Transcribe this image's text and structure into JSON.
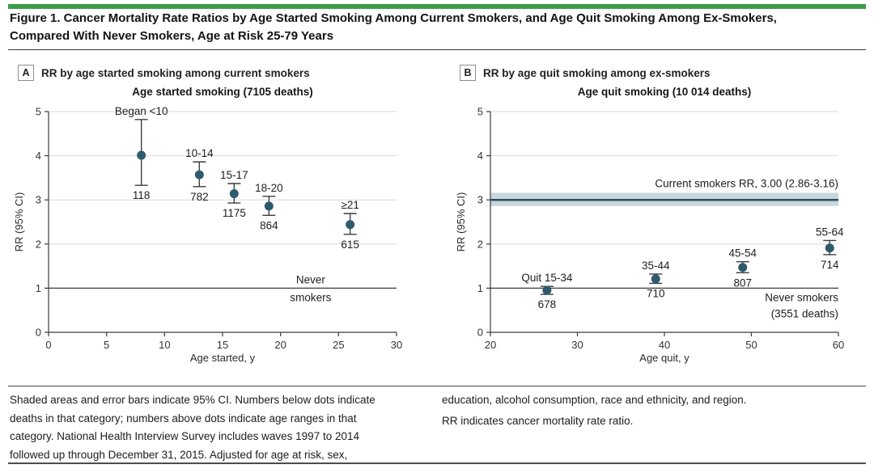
{
  "figure": {
    "title_line1": "Figure 1. Cancer Mortality Rate Ratios by Age Started Smoking Among Current Smokers, and Age Quit Smoking Among Ex-Smokers,",
    "title_line2": "Compared With Never Smokers, Age at Risk 25-79 Years"
  },
  "colors": {
    "accent_green": "#3e9c4a",
    "dot": "#2e5a6d",
    "band_fill": "#c9d6dc",
    "band_line": "#2c4e61",
    "grid": "#d9d9d9",
    "axis": "#3c3c3c",
    "error": "#3c3c3c"
  },
  "chart_data": [
    {
      "type": "scatter",
      "panel": "A",
      "panel_label": "RR by age started smoking among current smokers",
      "title": "Age started smoking (7105 deaths)",
      "xlabel": "Age started, y",
      "ylabel": "RR (95% CI)",
      "xlim": [
        0,
        30
      ],
      "ylim": [
        0,
        5
      ],
      "xticks": [
        0,
        5,
        10,
        15,
        20,
        25,
        30
      ],
      "yticks": [
        0,
        1,
        2,
        3,
        4,
        5
      ],
      "gridlines_y": [
        2,
        3,
        4,
        5
      ],
      "grid": true,
      "reference_line": {
        "y": 1,
        "label_lines": [
          "Never",
          "smokers"
        ],
        "label_anchor": "middle",
        "label_x": 22.6,
        "label_dy": [
          -6,
          16
        ]
      },
      "points": [
        {
          "x": 8,
          "rr": 4.01,
          "ci_low": 3.33,
          "ci_high": 4.82,
          "age_label": "Began <10",
          "deaths": "118"
        },
        {
          "x": 13,
          "rr": 3.57,
          "ci_low": 3.3,
          "ci_high": 3.86,
          "age_label": "10-14",
          "deaths": "782"
        },
        {
          "x": 16,
          "rr": 3.14,
          "ci_low": 2.93,
          "ci_high": 3.37,
          "age_label": "15-17",
          "deaths": "1175"
        },
        {
          "x": 19,
          "rr": 2.86,
          "ci_low": 2.65,
          "ci_high": 3.08,
          "age_label": "18-20",
          "deaths": "864"
        },
        {
          "x": 26,
          "rr": 2.44,
          "ci_low": 2.22,
          "ci_high": 2.69,
          "age_label": "≥21",
          "deaths": "615"
        }
      ]
    },
    {
      "type": "scatter",
      "panel": "B",
      "panel_label": "RR by age quit smoking among ex-smokers",
      "title": "Age quit smoking (10 014 deaths)",
      "xlabel": "Age quit, y",
      "ylabel": "RR (95% CI)",
      "xlim": [
        20,
        60
      ],
      "ylim": [
        0,
        5
      ],
      "xticks": [
        20,
        30,
        40,
        50,
        60
      ],
      "yticks": [
        0,
        1,
        2,
        3,
        4,
        5
      ],
      "gridlines_y": [
        2,
        3,
        4,
        5
      ],
      "grid": true,
      "band": {
        "center": 3.0,
        "low": 2.86,
        "high": 3.16,
        "label": "Current smokers RR, 3.00 (2.86-3.16)"
      },
      "reference_line": {
        "y": 1,
        "label_lines": [
          "Never smokers",
          "(3551 deaths)"
        ],
        "label_anchor": "end",
        "label_x": 60,
        "label_dy": [
          16,
          36
        ]
      },
      "points": [
        {
          "x": 26.5,
          "rr": 0.95,
          "ci_low": 0.86,
          "ci_high": 1.04,
          "age_label": "Quit 15-34",
          "deaths": "678"
        },
        {
          "x": 39,
          "rr": 1.21,
          "ci_low": 1.11,
          "ci_high": 1.32,
          "age_label": "35-44",
          "deaths": "710"
        },
        {
          "x": 49,
          "rr": 1.47,
          "ci_low": 1.35,
          "ci_high": 1.6,
          "age_label": "45-54",
          "deaths": "807"
        },
        {
          "x": 59,
          "rr": 1.91,
          "ci_low": 1.76,
          "ci_high": 2.08,
          "age_label": "55-64",
          "deaths": "714"
        }
      ]
    }
  ],
  "footnotes": {
    "left_lines": [
      "Shaded areas and error bars indicate 95% CI. Numbers below dots indicate",
      "deaths in that category; numbers above dots indicate age ranges in that",
      "category. National Health Interview Survey includes waves 1997 to 2014",
      "followed up through December 31, 2015. Adjusted for age at risk, sex,"
    ],
    "right_lines": [
      "education, alcohol consumption, race and ethnicity, and region.",
      "RR indicates cancer mortality rate ratio."
    ]
  }
}
